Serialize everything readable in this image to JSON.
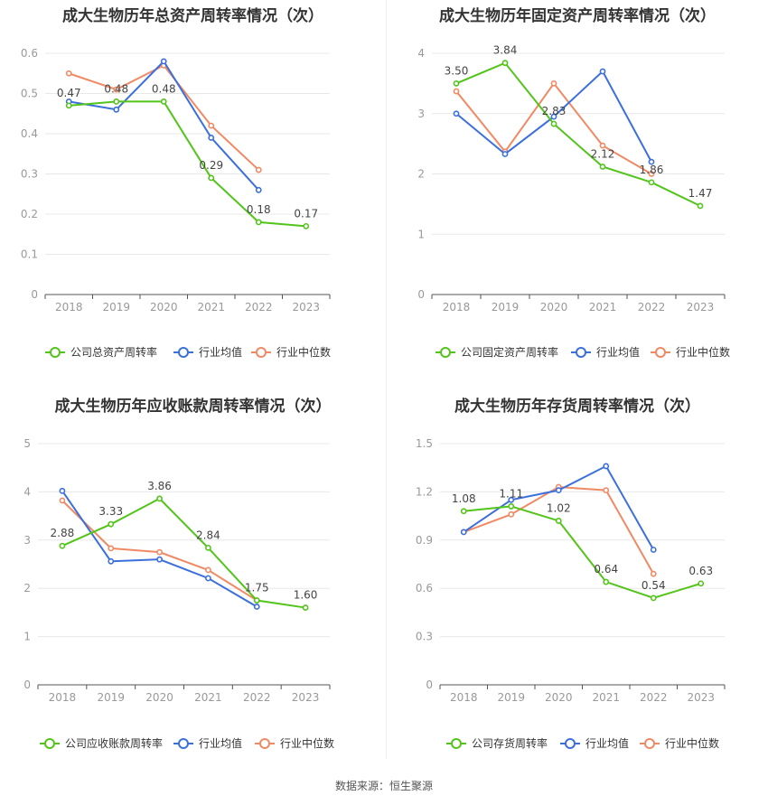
{
  "source_text": "数据来源：恒生聚源",
  "colors": {
    "company": "#52c41a",
    "avg": "#3b6fdc",
    "median": "#f08a65",
    "grid": "#e8e8e8",
    "axis": "#999999"
  },
  "chart_data": [
    {
      "type": "line",
      "title": "成大生物历年总资产周转率情况（次）",
      "categories": [
        "2018",
        "2019",
        "2020",
        "2021",
        "2022",
        "2023"
      ],
      "ylim": [
        0,
        0.6
      ],
      "yticks": [
        "0",
        "0.1",
        "0.2",
        "0.3",
        "0.4",
        "0.5",
        "0.6"
      ],
      "series": [
        {
          "name": "公司总资产周转率",
          "key": "company",
          "values": [
            0.47,
            0.48,
            0.48,
            0.29,
            0.18,
            0.17
          ],
          "labels": [
            "0.47",
            "0.48",
            "0.48",
            "0.29",
            "0.18",
            "0.17"
          ]
        },
        {
          "name": "行业均值",
          "key": "avg",
          "values": [
            0.48,
            0.46,
            0.58,
            0.39,
            0.26,
            null
          ]
        },
        {
          "name": "行业中位数",
          "key": "median",
          "values": [
            0.55,
            0.51,
            0.57,
            0.42,
            0.31,
            null
          ]
        }
      ]
    },
    {
      "type": "line",
      "title": "成大生物历年固定资产周转率情况（次）",
      "categories": [
        "2018",
        "2019",
        "2020",
        "2021",
        "2022",
        "2023"
      ],
      "ylim": [
        0,
        4
      ],
      "yticks": [
        "0",
        "1",
        "2",
        "3",
        "4"
      ],
      "series": [
        {
          "name": "公司固定资产周转率",
          "key": "company",
          "values": [
            3.5,
            3.84,
            2.83,
            2.12,
            1.86,
            1.47
          ],
          "labels": [
            "3.50",
            "3.84",
            "2.83",
            "2.12",
            "1.86",
            "1.47"
          ]
        },
        {
          "name": "行业均值",
          "key": "avg",
          "values": [
            3.0,
            2.33,
            2.95,
            3.7,
            2.2,
            null
          ]
        },
        {
          "name": "行业中位数",
          "key": "median",
          "values": [
            3.37,
            2.37,
            3.5,
            2.47,
            2.0,
            null
          ]
        }
      ]
    },
    {
      "type": "line",
      "title": "成大生物历年应收账款周转率情况（次）",
      "categories": [
        "2018",
        "2019",
        "2020",
        "2021",
        "2022",
        "2023"
      ],
      "ylim": [
        0,
        5
      ],
      "yticks": [
        "0",
        "1",
        "2",
        "3",
        "4",
        "5"
      ],
      "series": [
        {
          "name": "公司应收账款周转率",
          "key": "company",
          "values": [
            2.88,
            3.33,
            3.86,
            2.84,
            1.75,
            1.6
          ],
          "labels": [
            "2.88",
            "3.33",
            "3.86",
            "2.84",
            "1.75",
            "1.60"
          ]
        },
        {
          "name": "行业均值",
          "key": "avg",
          "values": [
            4.02,
            2.56,
            2.6,
            2.21,
            1.62,
            null
          ]
        },
        {
          "name": "行业中位数",
          "key": "median",
          "values": [
            3.82,
            2.83,
            2.75,
            2.38,
            1.75,
            null
          ]
        }
      ]
    },
    {
      "type": "line",
      "title": "成大生物历年存货周转率情况（次）",
      "categories": [
        "2018",
        "2019",
        "2020",
        "2021",
        "2022",
        "2023"
      ],
      "ylim": [
        0,
        1.5
      ],
      "yticks": [
        "0",
        "0.3",
        "0.6",
        "0.9",
        "1.2",
        "1.5"
      ],
      "series": [
        {
          "name": "公司存货周转率",
          "key": "company",
          "values": [
            1.08,
            1.11,
            1.02,
            0.64,
            0.54,
            0.63
          ],
          "labels": [
            "1.08",
            "1.11",
            "1.02",
            "0.64",
            "0.54",
            "0.63"
          ]
        },
        {
          "name": "行业均值",
          "key": "avg",
          "values": [
            0.95,
            1.15,
            1.21,
            1.36,
            0.84,
            null
          ]
        },
        {
          "name": "行业中位数",
          "key": "median",
          "values": [
            0.95,
            1.06,
            1.23,
            1.21,
            0.69,
            null
          ]
        }
      ]
    }
  ]
}
